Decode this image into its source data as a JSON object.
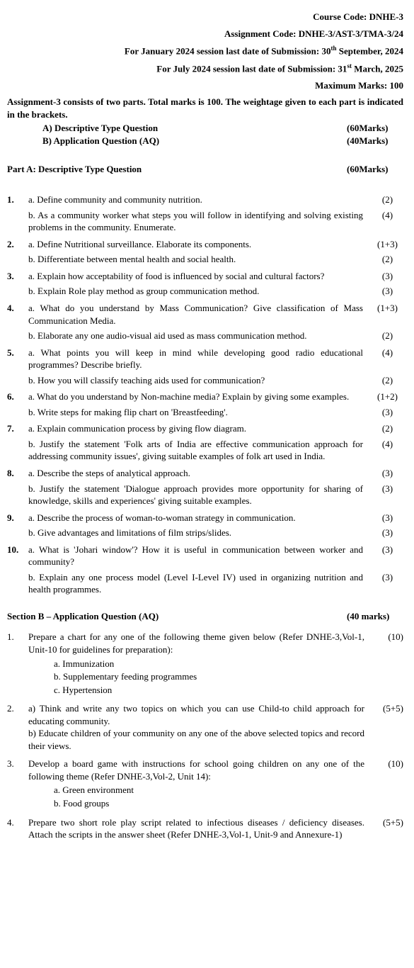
{
  "header": {
    "courseCode": "Course Code: DNHE-3",
    "assignmentCode": "Assignment Code: DNHE-3/AST-3/TMA-3/24",
    "janSession": "For January 2024 session last date of Submission: 30",
    "janSessionSup": "th",
    "janSessionEnd": " September, 2024",
    "julSession": "For July 2024 session last date of Submission: 31",
    "julSessionSup": "st",
    "julSessionEnd": " March, 2025",
    "maxMarks": "Maximum Marks: 100"
  },
  "intro": {
    "line1": "Assignment-3 consists of two parts. Total marks is 100. The weightage given to each part is indicated in the brackets.",
    "typeA": "A) Descriptive Type Question",
    "typeAMarks": "(60Marks)",
    "typeB": "B) Application Question (AQ)",
    "typeBMarks": "(40Marks)"
  },
  "partA": {
    "title": "Part A: Descriptive Type Question",
    "marks": "(60Marks)",
    "questions": [
      {
        "num": "1.",
        "parts": [
          {
            "text": "a. Define community and community nutrition.",
            "marks": "(2)"
          },
          {
            "text": "b. As a community worker what steps you will follow in identifying and solving existing problems in the community. Enumerate.",
            "marks": "(4)"
          }
        ]
      },
      {
        "num": "2.",
        "parts": [
          {
            "text": "a. Define Nutritional surveillance.  Elaborate its components.",
            "marks": "(1+3)"
          },
          {
            "text": "b. Differentiate between mental health and social health.",
            "marks": "(2)"
          }
        ]
      },
      {
        "num": "3.",
        "parts": [
          {
            "text": "a. Explain how acceptability of food is influenced by social and cultural factors?",
            "marks": "(3)"
          },
          {
            "text": "b. Explain Role play method as group communication method.",
            "marks": "(3)"
          }
        ]
      },
      {
        "num": "4.",
        "parts": [
          {
            "text": "a. What do you understand by Mass Communication? Give classification of Mass Communication Media.",
            "marks": "(1+3)"
          },
          {
            "text": "b. Elaborate any one audio-visual aid used as mass communication method.",
            "marks": "(2)"
          }
        ]
      },
      {
        "num": "5.",
        "parts": [
          {
            "text": "a. What points you will keep in mind while developing good radio educational programmes? Describe briefly.",
            "marks": "(4)"
          },
          {
            "text": "b. How you will classify teaching aids used for communication?",
            "marks": "(2)"
          }
        ]
      },
      {
        "num": "6.",
        "parts": [
          {
            "text": "a. What do you understand by Non-machine media? Explain by giving some examples.",
            "marks": "(1+2)"
          },
          {
            "text": "b. Write steps for making flip chart on 'Breastfeeding'.",
            "marks": "(3)"
          }
        ]
      },
      {
        "num": "7.",
        "parts": [
          {
            "text": "a. Explain communication process by giving flow diagram.",
            "marks": "(2)"
          },
          {
            "text": "b. Justify the statement 'Folk arts of India are effective communication approach for addressing community issues', giving suitable examples of folk art used in India.",
            "marks": "(4)"
          }
        ]
      },
      {
        "num": "8.",
        "parts": [
          {
            "text": "a. Describe the steps of analytical approach.",
            "marks": "(3)"
          },
          {
            "text": "b. Justify the statement 'Dialogue approach provides more opportunity for sharing of knowledge, skills and experiences' giving suitable examples.",
            "marks": "(3)"
          }
        ]
      },
      {
        "num": "9.",
        "parts": [
          {
            "text": "a. Describe the process of woman-to-woman strategy in communication.",
            "marks": "(3)"
          },
          {
            "text": "b. Give advantages and limitations of film strips/slides.",
            "marks": "(3)"
          }
        ]
      },
      {
        "num": "10.",
        "parts": [
          {
            "text": "a. What is 'Johari window'? How it is useful in communication between worker and community?",
            "marks": "(3)"
          },
          {
            "text": "b. Explain any one process model (Level I-Level IV) used in organizing nutrition and health programmes.",
            "marks": "(3)"
          }
        ]
      }
    ]
  },
  "sectionB": {
    "title": "Section B – Application Question (AQ)",
    "marks": "(40 marks)",
    "questions": [
      {
        "num": "1.",
        "text": "Prepare a chart for any one of the following theme given below (Refer DNHE-3,Vol-1, Unit-10 for guidelines for preparation):",
        "marks": "(10)",
        "subitems": [
          "a.   Immunization",
          "b.   Supplementary feeding programmes",
          "c.   Hypertension"
        ]
      },
      {
        "num": "2.",
        "text": "a) Think and write any two topics on which you can use Child-to child approach for educating community.",
        "text2": "b) Educate children of your community on any one of the above selected topics and record their views.",
        "marks": "(5+5)"
      },
      {
        "num": "3.",
        "text": "Develop a board game with instructions for school going children on any one of the following theme (Refer DNHE-3,Vol-2, Unit 14):",
        "marks": "(10)",
        "subitems": [
          "a.   Green environment",
          "b.   Food groups"
        ]
      },
      {
        "num": "4.",
        "text": "Prepare two short role play script related to infectious diseases / deficiency diseases. Attach the scripts in the answer sheet (Refer DNHE-3,Vol-1, Unit-9 and Annexure-1)",
        "marks": "(5+5)"
      }
    ]
  }
}
